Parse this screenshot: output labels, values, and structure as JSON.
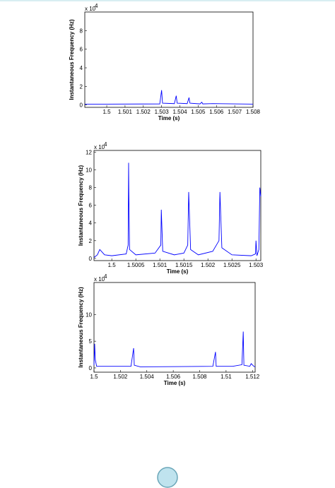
{
  "chart_data": [
    {
      "type": "line",
      "xlabel": "Time (s)",
      "ylabel": "Instantaneous Frequency (Hz)",
      "y_exponent_base": "x 10",
      "y_exponent": "4",
      "xlim": [
        1.4988,
        1.508
      ],
      "xticks": [
        1.5,
        1.501,
        1.502,
        1.503,
        1.504,
        1.505,
        1.506,
        1.507,
        1.508
      ],
      "ylim": [
        -0.25,
        10
      ],
      "yticks": [
        0,
        2,
        4,
        6,
        8
      ],
      "color": "#0000ff",
      "x": [
        1.4988,
        1.5,
        1.5029,
        1.503,
        1.50305,
        1.5037,
        1.5038,
        1.50385,
        1.5044,
        1.5045,
        1.50455,
        1.5051,
        1.5052,
        1.50525,
        1.5058,
        1.508
      ],
      "values": [
        0.1,
        0.1,
        0.12,
        1.6,
        0.2,
        0.15,
        1.0,
        0.2,
        0.15,
        0.8,
        0.2,
        0.12,
        0.3,
        0.12,
        0.15,
        0.1
      ]
    },
    {
      "type": "line",
      "xlabel": "Time (s)",
      "ylabel": "Instantaneous Frequency (Hz)",
      "y_exponent_base": "x 10",
      "y_exponent": "4",
      "xlim": [
        1.49963,
        1.5031
      ],
      "xticks": [
        1.5,
        1.5005,
        1.501,
        1.5015,
        1.502,
        1.5025,
        1.503
      ],
      "ylim": [
        -0.25,
        12.2
      ],
      "yticks": [
        0,
        2,
        4,
        6,
        8,
        10,
        12
      ],
      "color": "#0000ff",
      "x": [
        1.49963,
        1.4997,
        1.49975,
        1.49985,
        1.5,
        1.5003,
        1.50034,
        1.50035,
        1.500355,
        1.50037,
        1.5005,
        1.5009,
        1.50102,
        1.50103,
        1.50106,
        1.5013,
        1.5015,
        1.50158,
        1.5016,
        1.50164,
        1.5018,
        1.5021,
        1.50223,
        1.50225,
        1.50229,
        1.5025,
        1.5029,
        1.50299,
        1.503,
        1.50302,
        1.50306,
        1.50308,
        1.5031
      ],
      "values": [
        0.1,
        0.4,
        1.0,
        0.4,
        0.3,
        0.5,
        1.5,
        10.8,
        7.5,
        1.0,
        0.4,
        0.6,
        1.5,
        5.5,
        0.8,
        0.4,
        0.6,
        1.5,
        7.5,
        1.0,
        0.4,
        0.8,
        2.0,
        7.5,
        1.2,
        0.4,
        0.3,
        0.5,
        2.0,
        0.3,
        1.0,
        8.0,
        7.0
      ]
    },
    {
      "type": "line",
      "xlabel": "Time (s)",
      "ylabel": "Instantaneous Frequency (Hz)",
      "y_exponent_base": "x 10",
      "y_exponent": "4",
      "xlim": [
        1.5,
        1.5122
      ],
      "xticks": [
        1.5,
        1.502,
        1.504,
        1.506,
        1.508,
        1.51,
        1.512
      ],
      "ylim": [
        -0.8,
        16
      ],
      "yticks": [
        0,
        5,
        10
      ],
      "color": "#0000ff",
      "x": [
        1.5,
        1.50005,
        1.5001,
        1.5002,
        1.5028,
        1.503,
        1.50305,
        1.5035,
        1.509,
        1.5092,
        1.50925,
        1.5105,
        1.5112,
        1.5113,
        1.51135,
        1.5118,
        1.5119,
        1.5121,
        1.5122
      ],
      "values": [
        0.5,
        4.5,
        1.5,
        0.3,
        0.3,
        3.7,
        0.5,
        0.2,
        0.3,
        3.0,
        0.3,
        0.3,
        0.6,
        6.8,
        0.5,
        0.3,
        0.8,
        0.3,
        0.2
      ]
    }
  ]
}
